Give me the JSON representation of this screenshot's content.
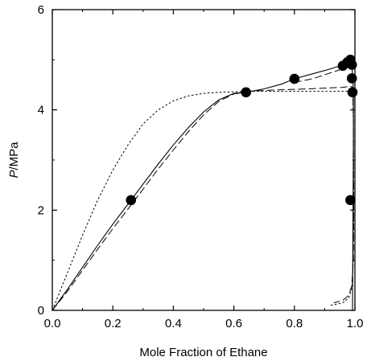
{
  "chart_data": {
    "type": "line",
    "title": "",
    "xlabel": "Mole Fraction of Ethane",
    "ylabel_italic": "P",
    "ylabel_rest": "/MPa",
    "xlim": [
      0.0,
      1.0
    ],
    "ylim": [
      0,
      6
    ],
    "x_ticks": [
      0.0,
      0.2,
      0.4,
      0.6,
      0.8,
      1.0
    ],
    "x_tick_labels": [
      "0.0",
      "0.2",
      "0.4",
      "0.6",
      "0.8",
      "1.0"
    ],
    "y_ticks": [
      0,
      2,
      4,
      6
    ],
    "y_tick_labels": [
      "0",
      "2",
      "4",
      "6"
    ],
    "grid": false,
    "legend": "none",
    "markers": {
      "style": "filled-circle",
      "color": "#000000",
      "points": [
        {
          "x": 0.26,
          "y": 2.2
        },
        {
          "x": 0.64,
          "y": 4.35
        },
        {
          "x": 0.8,
          "y": 4.62
        },
        {
          "x": 0.96,
          "y": 4.88
        },
        {
          "x": 0.975,
          "y": 4.95
        },
        {
          "x": 0.985,
          "y": 5.0
        },
        {
          "x": 0.99,
          "y": 4.9
        },
        {
          "x": 0.99,
          "y": 4.63
        },
        {
          "x": 0.992,
          "y": 4.35
        },
        {
          "x": 0.985,
          "y": 2.2
        }
      ]
    },
    "series": [
      {
        "style": "solid",
        "x": [
          0.0,
          0.05,
          0.1,
          0.15,
          0.2,
          0.26,
          0.3,
          0.35,
          0.4,
          0.45,
          0.5,
          0.55,
          0.6,
          0.64
        ],
        "y": [
          0.0,
          0.42,
          0.86,
          1.3,
          1.72,
          2.2,
          2.52,
          2.92,
          3.3,
          3.65,
          3.96,
          4.2,
          4.33,
          4.35
        ]
      },
      {
        "style": "solid",
        "x": [
          0.64,
          0.7,
          0.76,
          0.8,
          0.86,
          0.92,
          0.96,
          0.985
        ],
        "y": [
          4.35,
          4.42,
          4.52,
          4.62,
          4.72,
          4.82,
          4.9,
          5.0
        ]
      },
      {
        "style": "solid",
        "x": [
          0.985,
          0.99,
          0.993,
          0.995,
          0.995,
          0.994,
          0.992
        ],
        "y": [
          5.0,
          4.9,
          4.63,
          4.35,
          3.5,
          2.2,
          0.0
        ]
      },
      {
        "style": "long-dash",
        "x": [
          0.0,
          0.05,
          0.1,
          0.15,
          0.2,
          0.26,
          0.3,
          0.35,
          0.4,
          0.45,
          0.5,
          0.55,
          0.6,
          0.64
        ],
        "y": [
          0.0,
          0.38,
          0.8,
          1.22,
          1.63,
          2.1,
          2.42,
          2.82,
          3.2,
          3.57,
          3.9,
          4.17,
          4.32,
          4.35
        ]
      },
      {
        "style": "long-dash",
        "x": [
          0.64,
          0.75,
          0.85,
          0.92,
          0.96,
          0.985,
          0.993
        ],
        "y": [
          4.37,
          4.4,
          4.42,
          4.44,
          4.45,
          4.47,
          4.45
        ]
      },
      {
        "style": "long-dash",
        "x": [
          0.8,
          0.86,
          0.9,
          0.95,
          0.97,
          0.985
        ],
        "y": [
          4.55,
          4.62,
          4.7,
          4.8,
          4.9,
          4.98
        ]
      },
      {
        "style": "long-dash",
        "x": [
          0.993,
          0.995,
          0.996,
          0.995,
          0.99,
          0.98,
          0.96,
          0.93
        ],
        "y": [
          4.45,
          3.8,
          2.0,
          1.0,
          0.5,
          0.3,
          0.2,
          0.15
        ]
      },
      {
        "style": "short-dash",
        "x": [
          0.0,
          0.05,
          0.1,
          0.15,
          0.2,
          0.25,
          0.3,
          0.35,
          0.4,
          0.45,
          0.5,
          0.55,
          0.6,
          0.65
        ],
        "y": [
          0.0,
          0.75,
          1.5,
          2.2,
          2.8,
          3.3,
          3.72,
          4.0,
          4.18,
          4.28,
          4.33,
          4.35,
          4.36,
          4.37
        ]
      },
      {
        "style": "short-dash",
        "x": [
          0.65,
          0.75,
          0.85,
          0.92,
          0.96,
          0.985,
          0.993
        ],
        "y": [
          4.37,
          4.37,
          4.37,
          4.37,
          4.37,
          4.37,
          4.37
        ]
      },
      {
        "style": "short-dash",
        "x": [
          0.993,
          0.995,
          0.996,
          0.994,
          0.99,
          0.98,
          0.96,
          0.92
        ],
        "y": [
          4.37,
          3.6,
          2.0,
          0.9,
          0.45,
          0.25,
          0.15,
          0.1
        ]
      }
    ]
  }
}
